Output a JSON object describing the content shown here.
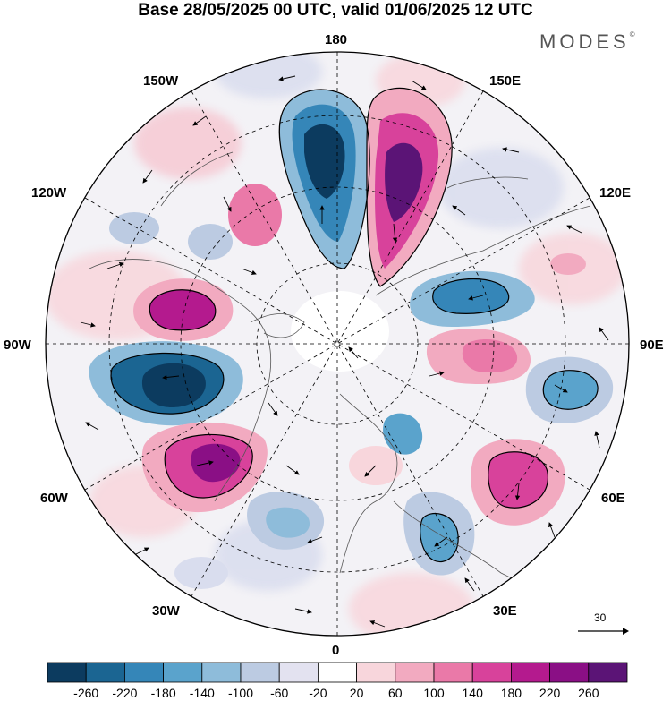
{
  "header": {
    "title": "Base 28/05/2025 00 UTC, valid 01/06/2025 12 UTC",
    "brand": "MODES",
    "brand_mark": "©"
  },
  "map": {
    "projection": "north-polar-stereographic",
    "longitude_labels": {
      "lon_180": "180",
      "lon_150W": "150W",
      "lon_150E": "150E",
      "lon_120W": "120W",
      "lon_120E": "120E",
      "lon_90W": "90W",
      "lon_90E": "90E",
      "lon_60W": "60W",
      "lon_60E": "60E",
      "lon_30W": "30W",
      "lon_30E": "30E",
      "lon_0": "0"
    },
    "anomaly_centers": [
      {
        "sign": "negative",
        "level": -260,
        "near": "Bering Sea / 170E"
      },
      {
        "sign": "positive",
        "level": 260,
        "near": "160E"
      },
      {
        "sign": "positive",
        "level": 200,
        "near": "Canada 110W"
      },
      {
        "sign": "negative",
        "level": -260,
        "near": "Hudson Bay / 80W"
      },
      {
        "sign": "positive",
        "level": 220,
        "near": "Greenland 50W"
      },
      {
        "sign": "negative",
        "level": -160,
        "near": "Siberia 120E"
      },
      {
        "sign": "positive",
        "level": 140,
        "near": "Siberia 90E"
      },
      {
        "sign": "negative",
        "level": -120,
        "near": "Central Asia 80E"
      },
      {
        "sign": "positive",
        "level": 180,
        "near": "Caspian / 55E"
      },
      {
        "sign": "negative",
        "level": -140,
        "near": "Eastern Europe 30E"
      },
      {
        "sign": "negative",
        "level": -100,
        "near": "North Atlantic 20W"
      },
      {
        "sign": "negative",
        "level": -120,
        "near": "Barents Sea 40E"
      }
    ]
  },
  "vector_scale": {
    "label": "30"
  },
  "colorbar": {
    "labels": [
      "-260",
      "-220",
      "-180",
      "-140",
      "-100",
      "-60",
      "-20",
      "20",
      "60",
      "100",
      "140",
      "180",
      "220",
      "260"
    ],
    "colors": [
      "#0c3b5f",
      "#1b6592",
      "#3586b8",
      "#5aa3cc",
      "#8ebcda",
      "#bccbe2",
      "#e3e2f0",
      "#ffffff",
      "#f8d6dc",
      "#f2aac0",
      "#ea79a8",
      "#d8429b",
      "#b41a8e",
      "#8a0f85",
      "#5b1476"
    ]
  }
}
